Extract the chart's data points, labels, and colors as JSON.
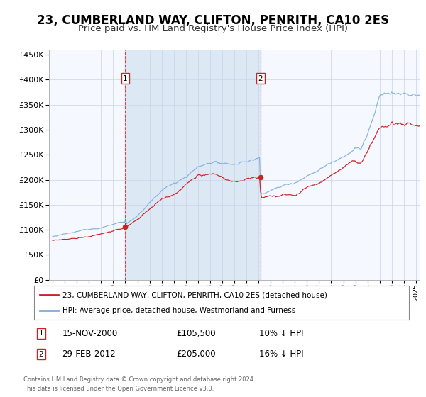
{
  "title": "23, CUMBERLAND WAY, CLIFTON, PENRITH, CA10 2ES",
  "subtitle": "Price paid vs. HM Land Registry's House Price Index (HPI)",
  "legend_line1": "23, CUMBERLAND WAY, CLIFTON, PENRITH, CA10 2ES (detached house)",
  "legend_line2": "HPI: Average price, detached house, Westmorland and Furness",
  "annotation1_date": "15-NOV-2000",
  "annotation1_price": "£105,500",
  "annotation1_hpi": "10% ↓ HPI",
  "annotation2_date": "29-FEB-2012",
  "annotation2_price": "£205,000",
  "annotation2_hpi": "16% ↓ HPI",
  "footer": "Contains HM Land Registry data © Crown copyright and database right 2024.\nThis data is licensed under the Open Government Licence v3.0.",
  "sale1_year": 2001.0,
  "sale1_price": 105500,
  "sale2_year": 2012.17,
  "sale2_price": 205000,
  "hpi_color": "#7aabdc",
  "price_color": "#cc2222",
  "plot_bg": "#f5f8ff",
  "shade_color": "#dce9f5",
  "ylim": [
    0,
    460000
  ],
  "xlim_start": 1994.7,
  "xlim_end": 2025.3,
  "title_fontsize": 12,
  "subtitle_fontsize": 9.5
}
